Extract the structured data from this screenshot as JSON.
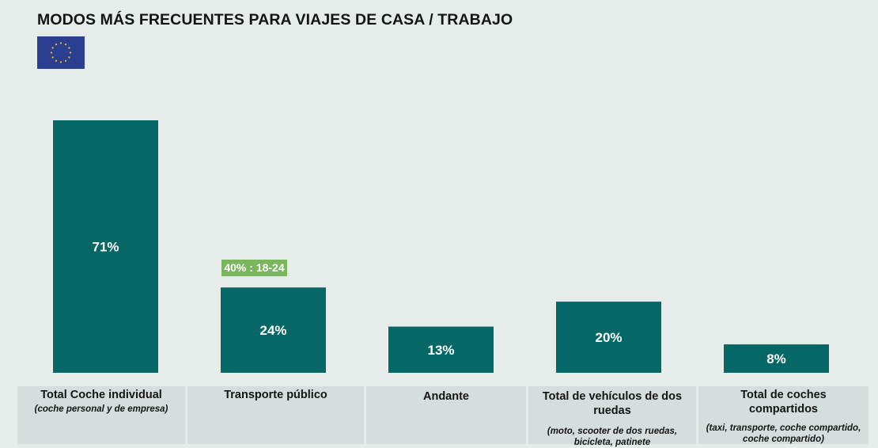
{
  "title": "MODOS MÁS FRECUENTES PARA VIAJES DE CASA / TRABAJO",
  "flag": {
    "name": "EU flag",
    "background": "#2a3f8f",
    "stars": "#f2c232"
  },
  "annotation": {
    "text": "40% : 18-24",
    "color": "#7ab65e"
  },
  "colors": {
    "bar": "#066866",
    "background": "#e5ecea",
    "category_bg": "#d6dedd"
  },
  "categories": [
    {
      "main": "Total Coche individual",
      "sub": "(coche personal y de empresa)"
    },
    {
      "main": "Transporte público",
      "sub": ""
    },
    {
      "main": "Andante",
      "sub": ""
    },
    {
      "main": "Total de vehículos de dos ruedas",
      "sub": "(moto, scooter de dos ruedas, bicicleta, patinete"
    },
    {
      "main": "Total de coches compartidos",
      "sub": "(taxi, transporte, coche compartido, coche compartido)"
    }
  ],
  "chart_data": {
    "type": "bar",
    "title": "MODOS MÁS FRECUENTES PARA VIAJES DE CASA / TRABAJO",
    "categories": [
      "Total Coche individual",
      "Transporte público",
      "Andante",
      "Total de vehículos de dos ruedas",
      "Total de coches compartidos"
    ],
    "values": [
      71,
      24,
      13,
      20,
      8
    ],
    "data_labels": [
      "71%",
      "24%",
      "13%",
      "20%",
      "8%"
    ],
    "annotations": [
      {
        "category": "Transporte público",
        "text": "40% : 18-24"
      }
    ],
    "ylim": [
      0,
      71
    ],
    "xlabel": "",
    "ylabel": "",
    "grid": false
  }
}
